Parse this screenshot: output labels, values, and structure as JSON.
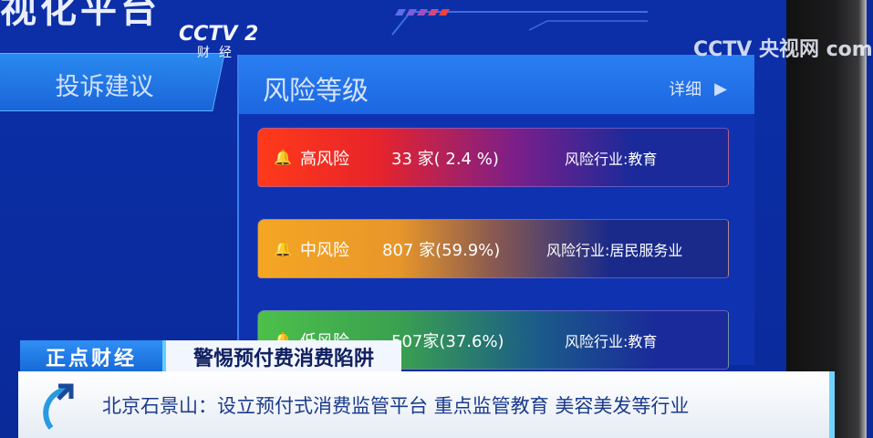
{
  "screen": {
    "title_partial": "视化平台",
    "left_nav_button": "投诉建议",
    "panel": {
      "title": "风险等级",
      "detail_label": "详细",
      "rows": [
        {
          "level": "高风险",
          "count": "33 家( 2.4 %)",
          "industry": "风险行业:教育",
          "color": "#ff3a1a"
        },
        {
          "level": "中风险",
          "count": "807 家(59.9%)",
          "industry": "风险行业:居民服务业",
          "color": "#f5a623"
        },
        {
          "level": "低风险",
          "count": "507家(37.6%)",
          "industry": "风险行业:教育",
          "color": "#4cc04a"
        }
      ]
    }
  },
  "broadcast": {
    "channel_logo": "CCTV 2",
    "channel_name": "财经",
    "watermark": "CCTV 央视网 com",
    "program": "正点财经",
    "topic": "警惕预付费消费陷阱",
    "headline": "北京石景山：设立预付式消费监管平台 重点监管教育 美容美发等行业"
  }
}
